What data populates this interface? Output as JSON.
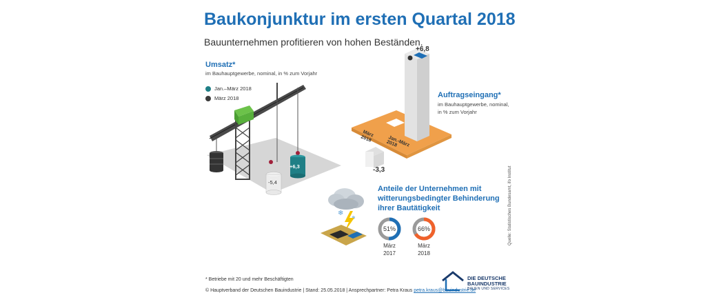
{
  "title": "Baukonjunktur im ersten Quartal 2018",
  "subtitle": "Bauunternehmen profitieren von hohen Beständen.",
  "umsatz": {
    "heading": "Umsatz*",
    "description": "im Bauhauptgewerbe, nominal, in % zum Vorjahr",
    "legend": [
      {
        "label": "Jan.–März 2018",
        "color": "#1f7f86"
      },
      {
        "label": "März 2018",
        "color": "#3b3b3b"
      }
    ]
  },
  "auftrag": {
    "heading": "Auftragseingang*",
    "description_lines": [
      "im Bauhauptgewerbe, nominal,",
      "in % zum Vorjahr"
    ]
  },
  "witterung": {
    "heading_lines": [
      "Anteile der Unternehmen mit",
      "witterungsbedingter Behinderung",
      "ihrer Bautätigkeit"
    ]
  },
  "footnote": "* Betriebe mit 20 und mehr Beschäftigten",
  "footer_text": "© Hauptverband der Deutschen Bauindustrie | Stand: 25.05.2018 | Ansprechpartner: Petra Kraus ",
  "footer_email": "petra.kraus@bauindustrie.de",
  "source": "Quelle: Statistisches Bundesamt, ifo Institut",
  "logo": {
    "line1": "DIE DEUTSCHE",
    "line2": "BAUINDUSTRIE",
    "line3": "BAUEN UND SERVICES"
  },
  "colors": {
    "accent": "#1f6fb5",
    "teal": "#1f7f86",
    "dark": "#3b3b3b",
    "orange": "#f0a04b",
    "donut_blue": "#1f6fb5",
    "donut_orange": "#f0622b"
  },
  "chart_data": [
    {
      "type": "bar",
      "title": "Umsatz*",
      "subtitle": "im Bauhauptgewerbe, nominal, in % zum Vorjahr",
      "categories": [
        "Jan.–März 2018",
        "März 2018"
      ],
      "values": [
        6.3,
        -5.4
      ],
      "labels": [
        "+6,3",
        "-5,4"
      ],
      "unit": "%"
    },
    {
      "type": "bar",
      "title": "Auftragseingang*",
      "subtitle": "im Bauhauptgewerbe, nominal, in % zum Vorjahr",
      "categories": [
        "März 2018",
        "Jan.-März 2018"
      ],
      "values": [
        -3.3,
        6.8
      ],
      "labels": [
        "-3,3",
        "+6,8"
      ],
      "unit": "%"
    },
    {
      "type": "pie",
      "title": "Anteile der Unternehmen mit witterungsbedingter Behinderung ihrer Bautätigkeit",
      "categories": [
        "März 2017",
        "März 2018"
      ],
      "category_lines": [
        [
          "März",
          "2017"
        ],
        [
          "März",
          "2018"
        ]
      ],
      "values": [
        51,
        66
      ],
      "labels": [
        "51%",
        "66%"
      ],
      "unit": "%"
    }
  ]
}
